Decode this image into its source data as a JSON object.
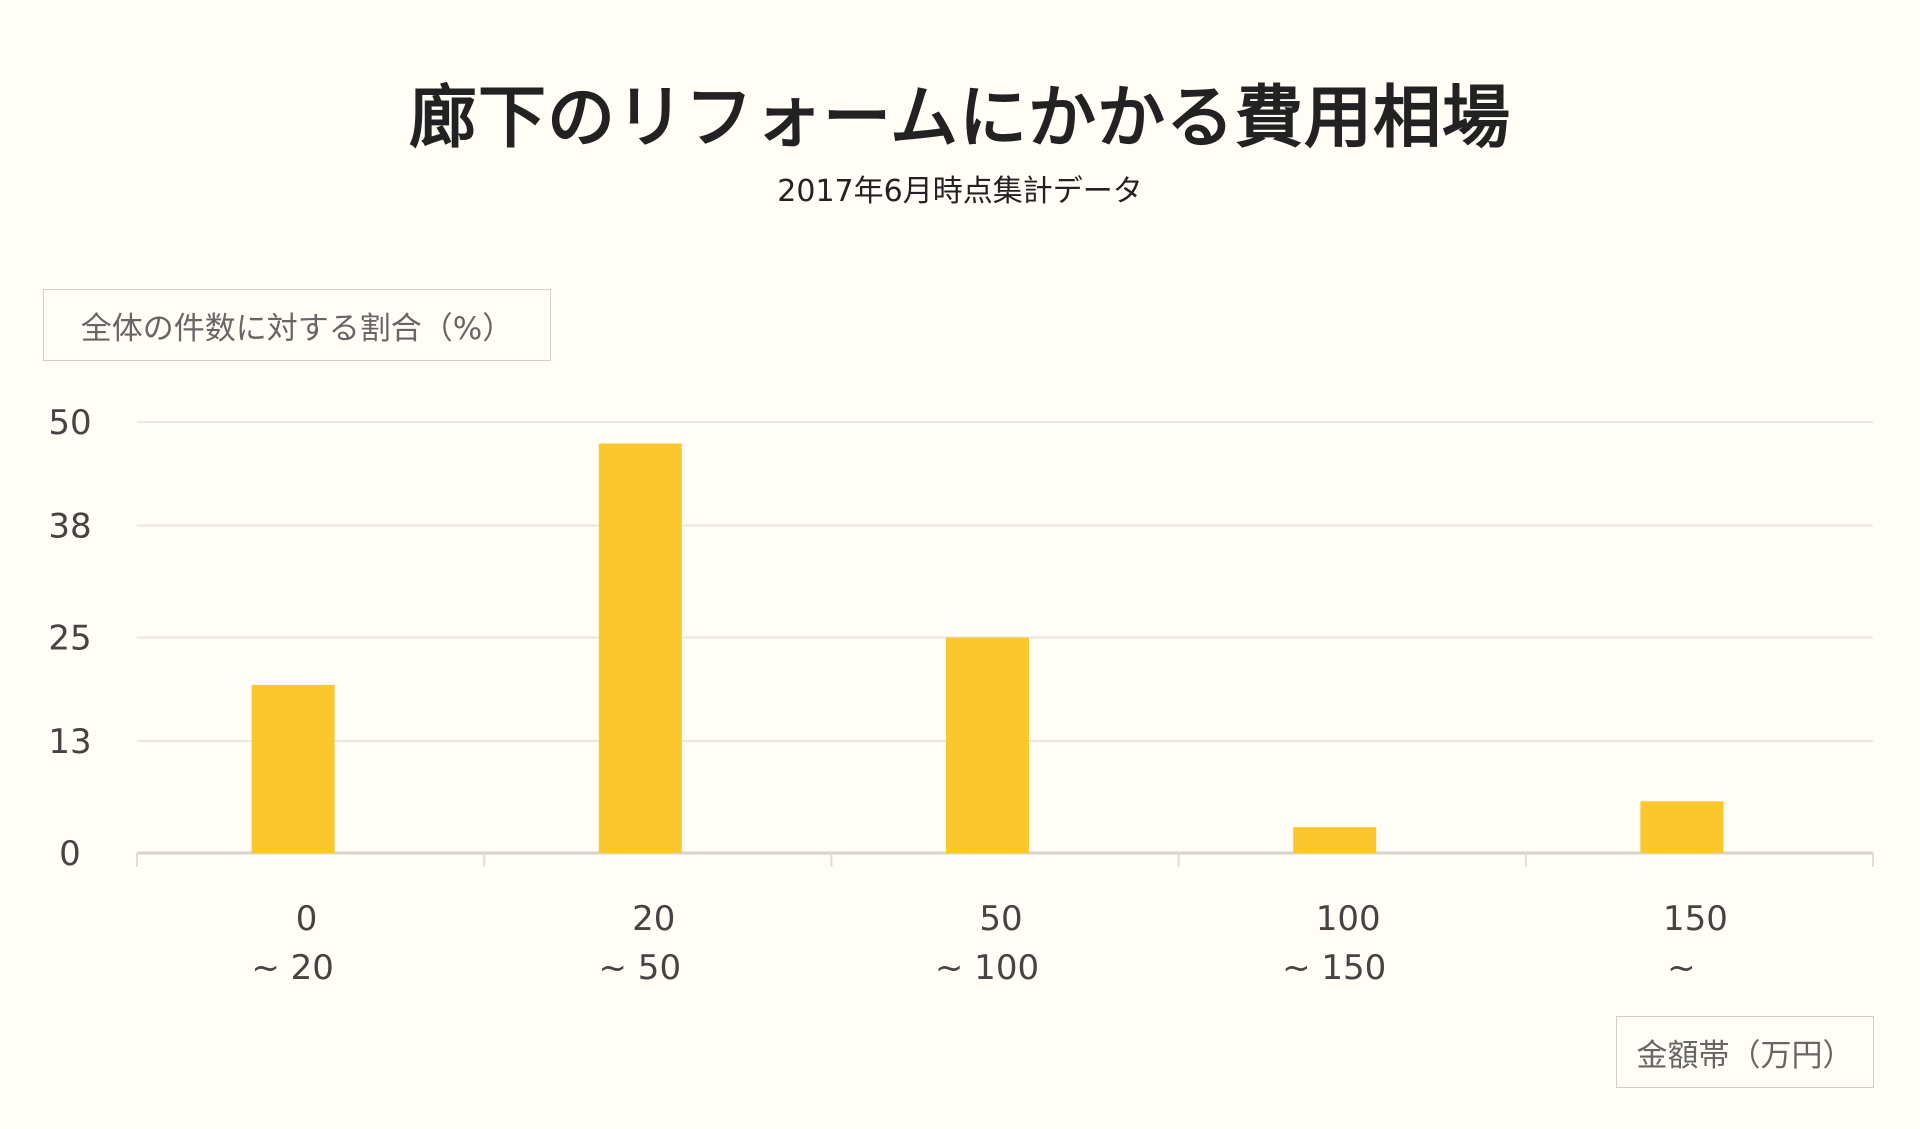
{
  "chart_data": {
    "type": "bar",
    "title": "廊下のリフォームにかかる費用相場",
    "subtitle": "2017年6月時点集計データ",
    "ylabel": "全体の件数に対する割合（%）",
    "xlabel": "金額帯（万円）",
    "categories": [
      {
        "line1": "0",
        "line2": "~ 20"
      },
      {
        "line1": "20",
        "line2": "~ 50"
      },
      {
        "line1": "50",
        "line2": "~ 100"
      },
      {
        "line1": "100",
        "line2": "~ 150"
      },
      {
        "line1": "150",
        "line2": "~"
      }
    ],
    "values": [
      19.5,
      47.5,
      25,
      3,
      6
    ],
    "yticks": [
      0,
      13,
      25,
      38,
      50
    ],
    "ylim": [
      0,
      50
    ],
    "grid": true,
    "colors": {
      "bar": "#fcc72c",
      "grid": "#ebe7dc",
      "background": "#fffdf6"
    }
  }
}
